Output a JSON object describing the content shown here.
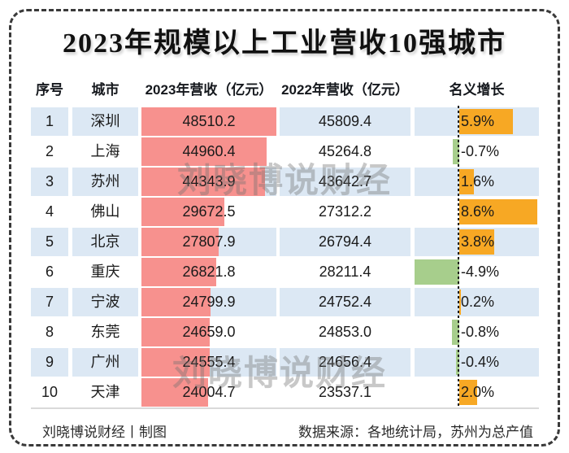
{
  "title": "2023年规模以上工业营收10强城市",
  "watermark_text": "刘晓博说财经",
  "header": {
    "rank": "序号",
    "city": "城市",
    "rev2023": "2023年营收（亿元）",
    "rev2022": "2022年营收（亿元）",
    "growth": "名义增长"
  },
  "max_rev2023": 48510.2,
  "rows": [
    {
      "rank": "1",
      "city": "深圳",
      "rev2023": "48510.2",
      "rev2023_num": 48510.2,
      "rev2022": "45809.4",
      "growth_label": "5.9%",
      "growth": 5.9
    },
    {
      "rank": "2",
      "city": "上海",
      "rev2023": "44960.4",
      "rev2023_num": 44960.4,
      "rev2022": "45264.8",
      "growth_label": "-0.7%",
      "growth": -0.7
    },
    {
      "rank": "3",
      "city": "苏州",
      "rev2023": "44343.9",
      "rev2023_num": 44343.9,
      "rev2022": "43642.7",
      "growth_label": "1.6%",
      "growth": 1.6
    },
    {
      "rank": "4",
      "city": "佛山",
      "rev2023": "29672.5",
      "rev2023_num": 29672.5,
      "rev2022": "27312.2",
      "growth_label": "8.6%",
      "growth": 8.6
    },
    {
      "rank": "5",
      "city": "北京",
      "rev2023": "27807.9",
      "rev2023_num": 27807.9,
      "rev2022": "26794.4",
      "growth_label": "3.8%",
      "growth": 3.8
    },
    {
      "rank": "6",
      "city": "重庆",
      "rev2023": "26821.8",
      "rev2023_num": 26821.8,
      "rev2022": "28211.4",
      "growth_label": "-4.9%",
      "growth": -4.9
    },
    {
      "rank": "7",
      "city": "宁波",
      "rev2023": "24799.9",
      "rev2023_num": 24799.9,
      "rev2022": "24752.4",
      "growth_label": "0.2%",
      "growth": 0.2
    },
    {
      "rank": "8",
      "city": "东莞",
      "rev2023": "24659.0",
      "rev2023_num": 24659.0,
      "rev2022": "24853.0",
      "growth_label": "-0.8%",
      "growth": -0.8
    },
    {
      "rank": "9",
      "city": "广州",
      "rev2023": "24555.4",
      "rev2023_num": 24555.4,
      "rev2022": "24656.4",
      "growth_label": "-0.4%",
      "growth": -0.4
    },
    {
      "rank": "10",
      "city": "天津",
      "rev2023": "24004.7",
      "rev2023_num": 24004.7,
      "rev2022": "23537.1",
      "growth_label": "2.0%",
      "growth": 2.0
    }
  ],
  "footer": {
    "left": "刘晓博说财经丨制图",
    "right": "数据来源：各地统计局，苏州为总产值"
  },
  "colors": {
    "row_alt_bg": "#DCE8F4",
    "bar_2023": "#F7918E",
    "bar_growth_positive": "#F7A824",
    "bar_growth_negative": "#A7CE8C",
    "zero_axis": "#1a1a1a",
    "watermark": "rgba(110,110,110,0.38)"
  },
  "chart_data": {
    "type": "table",
    "title": "2023年规模以上工业营收10强城市",
    "columns": [
      "序号",
      "城市",
      "2023年营收（亿元）",
      "2022年营收（亿元）",
      "名义增长"
    ],
    "rows": [
      [
        1,
        "深圳",
        48510.2,
        45809.4,
        "5.9%"
      ],
      [
        2,
        "上海",
        44960.4,
        45264.8,
        "-0.7%"
      ],
      [
        3,
        "苏州",
        44343.9,
        43642.7,
        "1.6%"
      ],
      [
        4,
        "佛山",
        29672.5,
        27312.2,
        "8.6%"
      ],
      [
        5,
        "北京",
        27807.9,
        26794.4,
        "3.8%"
      ],
      [
        6,
        "重庆",
        26821.8,
        28211.4,
        "-4.9%"
      ],
      [
        7,
        "宁波",
        24799.9,
        24752.4,
        "0.2%"
      ],
      [
        8,
        "东莞",
        24659.0,
        24853.0,
        "-0.8%"
      ],
      [
        9,
        "广州",
        24555.4,
        24656.4,
        "-0.4%"
      ],
      [
        10,
        "天津",
        24004.7,
        23537.1,
        "2.0%"
      ]
    ],
    "embedded_bars": {
      "rev2023_bar": {
        "type": "bar",
        "color": "#F7918E",
        "scale_max": 48510.2
      },
      "growth_bar": {
        "type": "diverging-bar",
        "positive_color": "#F7A824",
        "negative_color": "#A7CE8C",
        "zero_axis_dashed": true,
        "approx_range_pct": [
          -4.9,
          8.75
        ]
      }
    },
    "growth_values_pct": [
      5.9,
      -0.7,
      1.6,
      8.6,
      3.8,
      -4.9,
      0.2,
      -0.8,
      -0.4,
      2.0
    ],
    "source_note": "数据来源：各地统计局，苏州为总产值",
    "credit": "刘晓博说财经丨制图"
  }
}
